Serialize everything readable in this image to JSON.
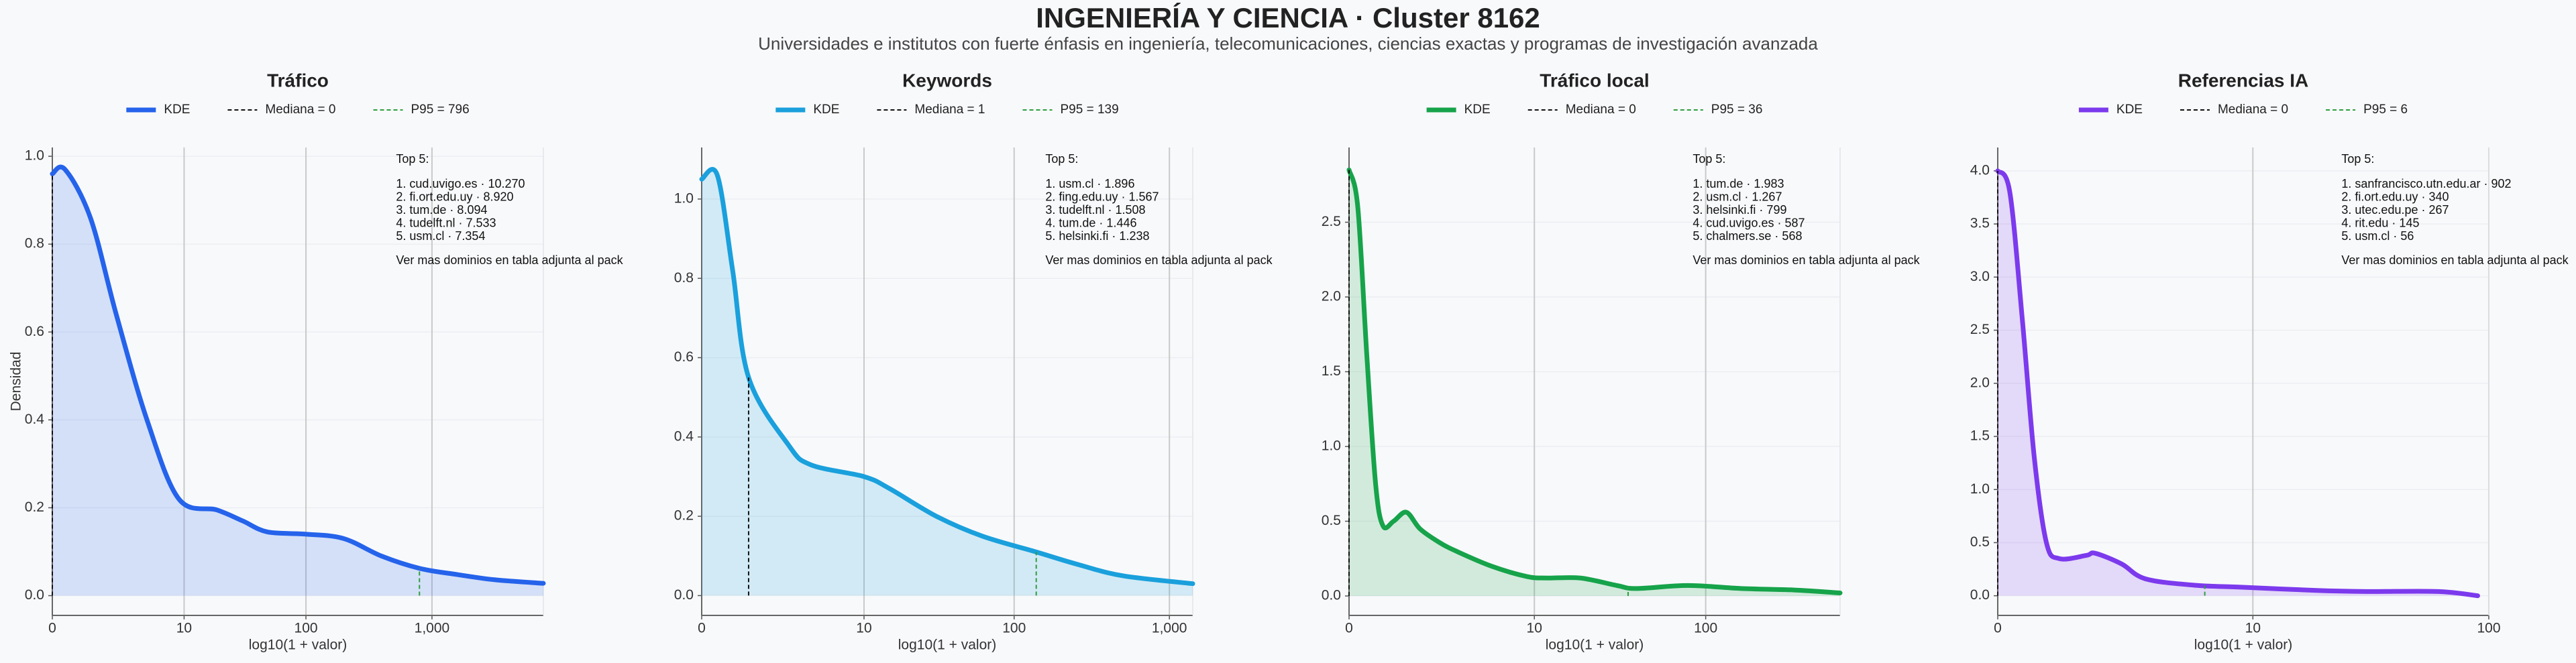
{
  "title": "INGENIERÍA Y CIENCIA · Cluster 8162",
  "subtitle": "Universidades e institutos con fuerte énfasis en ingeniería, telecomunicaciones, ciencias exactas y programas de investigación avanzada",
  "chart_data": [
    {
      "type": "area",
      "title": "Tráfico",
      "xlabel": "log10(1 + valor)",
      "ylabel": "Densidad",
      "xscale": "log1p",
      "xlim": [
        0,
        7600
      ],
      "xticks": [
        0,
        10,
        100,
        {
          "value": 1000,
          "label": "1,000"
        }
      ],
      "ylim": [
        -0.045,
        1.02
      ],
      "yticks": [
        {
          "value": 0,
          "label": "0.0"
        },
        0.2,
        0.4,
        0.6,
        0.8,
        {
          "value": 1,
          "label": "1.0"
        }
      ],
      "grid": true,
      "x": [
        0,
        0.26,
        1,
        2.2,
        4.6,
        9,
        19,
        31,
        49,
        99,
        199,
        399,
        799,
        1584,
        3161,
        7600
      ],
      "series": [
        {
          "name": "KDE",
          "color": "#2563eb",
          "values": [
            0.96,
            0.97,
            0.86,
            0.64,
            0.4,
            0.22,
            0.195,
            0.17,
            0.145,
            0.14,
            0.13,
            0.09,
            0.062,
            0.048,
            0.036,
            0.028
          ]
        }
      ],
      "reference_lines": [
        {
          "name": "Mediana = 0",
          "value": 0,
          "color": "#111111"
        },
        {
          "name": "P95 = 796",
          "value": 796,
          "color": "#2e9e3e"
        }
      ],
      "annotation": {
        "title": "Top 5:",
        "items": [
          "1. cud.uvigo.es · 10.270",
          "2. fi.ort.edu.uy · 8.920",
          "3. tum.de · 8.094",
          "4. tudelft.nl · 7.533",
          "5. usm.cl · 7.354"
        ],
        "note": "Ver mas dominios en tabla adjunta al pack"
      }
    },
    {
      "type": "area",
      "title": "Keywords",
      "xlabel": "log10(1 + valor)",
      "xscale": "log1p",
      "xlim": [
        0,
        1412
      ],
      "xticks": [
        0,
        10,
        100,
        {
          "value": 1000,
          "label": "1,000"
        }
      ],
      "ylim": [
        -0.05,
        1.13
      ],
      "yticks": [
        {
          "value": 0,
          "label": "0.0"
        },
        0.2,
        0.4,
        0.6,
        0.8,
        {
          "value": 1,
          "label": "1.0"
        }
      ],
      "grid": true,
      "x": [
        0,
        0.26,
        0.58,
        1,
        2.6,
        4,
        10,
        15,
        31,
        62,
        139,
        250,
        500,
        1412
      ],
      "series": [
        {
          "name": "KDE",
          "color": "#1aa0dc",
          "values": [
            1.05,
            1.06,
            0.82,
            0.55,
            0.38,
            0.33,
            0.3,
            0.27,
            0.2,
            0.15,
            0.11,
            0.08,
            0.05,
            0.03
          ]
        }
      ],
      "reference_lines": [
        {
          "name": "Mediana = 1",
          "value": 1,
          "color": "#111111"
        },
        {
          "name": "P95 = 139",
          "value": 139,
          "color": "#2e9e3e"
        }
      ],
      "annotation": {
        "title": "Top 5:",
        "items": [
          "1. usm.cl · 1.896",
          "2. fing.edu.uy · 1.567",
          "3. tudelft.nl · 1.508",
          "4. tum.de · 1.446",
          "5. helsinki.fi · 1.238"
        ],
        "note": "Ver mas dominios en tabla adjunta al pack"
      }
    },
    {
      "type": "area",
      "title": "Tráfico local",
      "xlabel": "log10(1 + valor)",
      "xscale": "log1p",
      "xlim": [
        0,
        574
      ],
      "xticks": [
        0,
        10,
        100
      ],
      "ylim": [
        -0.13,
        3.0
      ],
      "yticks": [
        {
          "value": 0,
          "label": "0.0"
        },
        0.5,
        {
          "value": 1,
          "label": "1.0"
        },
        1.5,
        {
          "value": 2,
          "label": "2.0"
        },
        2.5
      ],
      "grid": true,
      "x": [
        0,
        0.12,
        0.26,
        0.41,
        0.55,
        0.78,
        1.1,
        1.5,
        2.2,
        3,
        5.3,
        9,
        12,
        19,
        31,
        40,
        79,
        158,
        316,
        574
      ],
      "series": [
        {
          "name": "KDE",
          "color": "#16a34a",
          "values": [
            2.85,
            2.6,
            1.6,
            0.75,
            0.47,
            0.5,
            0.56,
            0.45,
            0.36,
            0.3,
            0.2,
            0.13,
            0.12,
            0.12,
            0.07,
            0.05,
            0.07,
            0.05,
            0.04,
            0.02
          ]
        }
      ],
      "reference_lines": [
        {
          "name": "Mediana = 0",
          "value": 0,
          "color": "#111111"
        },
        {
          "name": "P95 = 36",
          "value": 36,
          "color": "#2e9e3e"
        }
      ],
      "annotation": {
        "title": "Top 5:",
        "items": [
          "1. tum.de · 1.983",
          "2. usm.cl · 1.267",
          "3. helsinki.fi · 799",
          "4. cud.uvigo.es · 587",
          "5. chalmers.se · 568"
        ],
        "note": "Ver mas dominios en tabla adjunta al pack"
      }
    },
    {
      "type": "area",
      "title": "Referencias IA",
      "xlabel": "log10(1 + valor)",
      "xscale": "log1p",
      "xlim": [
        0,
        100
      ],
      "xticks": [
        0,
        10,
        100
      ],
      "ylim": [
        -0.185,
        4.22
      ],
      "yticks": [
        {
          "value": 0,
          "label": "0.0"
        },
        0.5,
        {
          "value": 1,
          "label": "1.0"
        },
        1.5,
        {
          "value": 2,
          "label": "2.0"
        },
        2.5,
        {
          "value": 3,
          "label": "3.0"
        },
        3.5,
        {
          "value": 4,
          "label": "4.0"
        }
      ],
      "grid": true,
      "x": [
        0,
        0.12,
        0.26,
        0.41,
        0.58,
        0.78,
        1.3,
        1.5,
        2.2,
        3,
        5.3,
        9,
        19,
        31,
        62,
        90
      ],
      "series": [
        {
          "name": "KDE",
          "color": "#7c3aed",
          "values": [
            4.0,
            3.8,
            2.6,
            1.3,
            0.5,
            0.35,
            0.38,
            0.4,
            0.3,
            0.16,
            0.1,
            0.08,
            0.05,
            0.04,
            0.04,
            0.0
          ]
        }
      ],
      "reference_lines": [
        {
          "name": "Mediana = 0",
          "value": 0,
          "color": "#111111"
        },
        {
          "name": "P95 = 6",
          "value": 6,
          "color": "#2e9e3e"
        }
      ],
      "annotation": {
        "title": "Top 5:",
        "items": [
          "1. sanfrancisco.utn.edu.ar · 902",
          "2. fi.ort.edu.uy · 340",
          "3. utec.edu.pe · 267",
          "4. rit.edu · 145",
          "5. usm.cl · 56"
        ],
        "note": "Ver mas dominios en tabla adjunta al pack"
      }
    }
  ]
}
